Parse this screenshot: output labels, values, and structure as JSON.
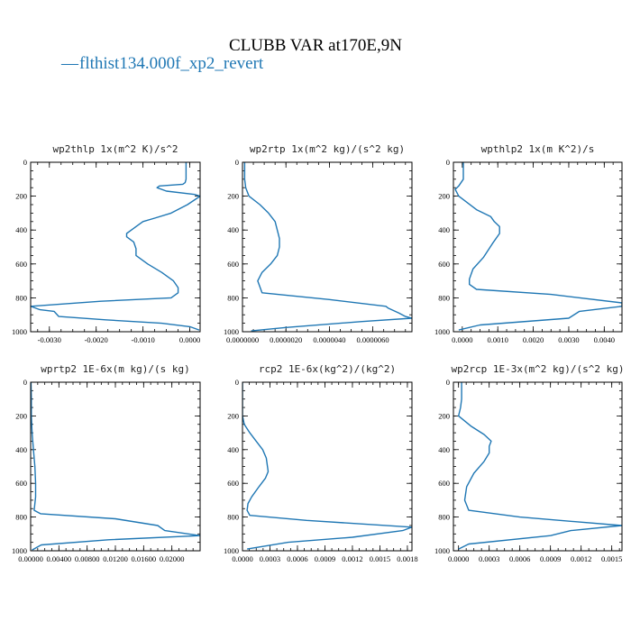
{
  "figure": {
    "title": "CLUBB VAR at170E,9N",
    "legend": [
      {
        "name": "flthist134.000f_xp2_revert",
        "color": "#1f77b4",
        "marker": "—"
      }
    ]
  },
  "chart_data": [
    {
      "type": "line",
      "title": "wp2thlp  1x(m^2 K)/s^2",
      "xlim": [
        -0.0034,
        0.00022
      ],
      "ylim": [
        1000,
        0
      ],
      "xticks": [
        -0.003,
        -0.002,
        -0.001,
        0.0
      ],
      "xtick_labels": [
        "-0.0030",
        "-0.0020",
        "-0.0010",
        "0.0000"
      ],
      "yticks": [
        0,
        200,
        400,
        600,
        800,
        1000
      ],
      "ytick_labels": [
        "0",
        "200",
        "400",
        "600",
        "800",
        "1000"
      ],
      "series": [
        {
          "x": [
            -8e-05,
            -8e-05,
            -8e-05,
            -0.0001,
            -0.00015,
            -0.00065,
            -0.0007,
            -0.0005,
            0.0001,
            0.00022,
            -5e-05,
            -0.0004,
            -0.00075,
            -0.001,
            -0.0011,
            -0.00125,
            -0.00135,
            -0.00135,
            -0.0012,
            -0.00115,
            -0.00115,
            -0.0009,
            -0.0006,
            -0.00035,
            -0.00025,
            -0.00025,
            -0.0004,
            -0.0019,
            -0.0034,
            -0.0032,
            -0.0029,
            -0.0028,
            -0.0018,
            -0.0006,
            0.0,
            0.0002
          ],
          "y": [
            0,
            50,
            100,
            120,
            130,
            140,
            150,
            170,
            190,
            200,
            250,
            300,
            330,
            350,
            370,
            400,
            420,
            440,
            470,
            510,
            550,
            600,
            650,
            700,
            740,
            770,
            800,
            820,
            850,
            870,
            880,
            910,
            930,
            950,
            970,
            990
          ]
        }
      ]
    },
    {
      "type": "line",
      "title": "wp2rtp  1x(m^2 kg)/(s^2 kg)",
      "xlim": [
        0.0,
        7.8e-06
      ],
      "ylim": [
        1000,
        0
      ],
      "xticks": [
        0.0,
        2e-06,
        4e-06,
        6e-06
      ],
      "xtick_labels": [
        "0.0000000",
        "0.0000020",
        "0.0000040",
        "0.0000060"
      ],
      "yticks": [
        0,
        200,
        400,
        600,
        800,
        1000
      ],
      "ytick_labels": [
        "0",
        "200",
        "400",
        "600",
        "800",
        "1000"
      ],
      "series": [
        {
          "x": [
            1e-07,
            1e-07,
            1e-07,
            1.5e-07,
            3e-07,
            8e-07,
            1.2e-06,
            1.5e-06,
            1.6e-06,
            1.7e-06,
            1.7e-06,
            1.6e-06,
            1.3e-06,
            9e-07,
            7e-07,
            9e-07,
            4e-06,
            6.6e-06,
            6.7e-06,
            7.2e-06,
            7.5e-06,
            7.8e-06,
            5.5e-06,
            2e-06,
            4e-07
          ],
          "y": [
            0,
            50,
            100,
            150,
            200,
            250,
            300,
            350,
            400,
            450,
            500,
            550,
            600,
            650,
            700,
            770,
            810,
            850,
            860,
            890,
            910,
            920,
            940,
            975,
            995
          ]
        }
      ]
    },
    {
      "type": "line",
      "title": "wpthlp2  1x(m K^2)/s",
      "xlim": [
        -0.00025,
        0.0045
      ],
      "ylim": [
        1000,
        0
      ],
      "xticks": [
        0.0,
        0.001,
        0.002,
        0.003,
        0.004
      ],
      "xtick_labels": [
        "0.0000",
        "0.0010",
        "0.0020",
        "0.0030",
        "0.0040"
      ],
      "yticks": [
        0,
        200,
        400,
        600,
        800,
        1000
      ],
      "ytick_labels": [
        "0",
        "200",
        "400",
        "600",
        "800",
        "1000"
      ],
      "series": [
        {
          "x": [
            3e-05,
            3e-05,
            3e-05,
            -0.0001,
            -0.0002,
            -0.0001,
            0.0004,
            0.0008,
            0.0009,
            0.00105,
            0.00105,
            0.00085,
            0.0006,
            0.0003,
            0.0002,
            0.0002,
            0.0004,
            0.0025,
            0.0045,
            0.0045,
            0.0033,
            0.003,
            0.0005,
            -0.0001
          ],
          "y": [
            0,
            50,
            100,
            140,
            160,
            200,
            280,
            320,
            350,
            380,
            420,
            480,
            560,
            630,
            690,
            720,
            750,
            780,
            830,
            850,
            880,
            920,
            960,
            990
          ]
        }
      ]
    },
    {
      "type": "line",
      "title": "wprtp2  1E-6x(m kg)/(s kg)",
      "xlim": [
        0.0,
        0.024
      ],
      "ylim": [
        1000,
        0
      ],
      "xticks": [
        0.0,
        0.004,
        0.008,
        0.012,
        0.016,
        0.02
      ],
      "xtick_labels": [
        "0.00000",
        "0.00400",
        "0.00800",
        "0.01200",
        "0.01600",
        "0.02000"
      ],
      "yticks": [
        0,
        200,
        400,
        600,
        800,
        1000
      ],
      "ytick_labels": [
        "0",
        "200",
        "400",
        "600",
        "800",
        "1000"
      ],
      "series": [
        {
          "x": [
            5e-05,
            0.0001,
            0.0001,
            0.0002,
            0.0004,
            0.0006,
            0.0007,
            0.0007,
            0.0006,
            0.0005,
            0.0014,
            0.012,
            0.018,
            0.019,
            0.024,
            0.011,
            0.0015,
            0.0002
          ],
          "y": [
            0,
            100,
            200,
            300,
            400,
            500,
            600,
            680,
            720,
            760,
            780,
            810,
            850,
            880,
            910,
            935,
            965,
            995
          ]
        }
      ]
    },
    {
      "type": "line",
      "title": "rcp2  1E-6x(kg^2)/(kg^2)",
      "xlim": [
        0.0,
        0.00185
      ],
      "ylim": [
        1000,
        0
      ],
      "xticks": [
        0.0,
        0.0003,
        0.0006,
        0.0009,
        0.0012,
        0.0015,
        0.0018
      ],
      "xtick_labels": [
        "0.0000",
        "0.0003",
        "0.0006",
        "0.0009",
        "0.0012",
        "0.0015",
        "0.0018"
      ],
      "yticks": [
        0,
        200,
        400,
        600,
        800,
        1000
      ],
      "ytick_labels": [
        "0",
        "200",
        "400",
        "600",
        "800",
        "1000"
      ],
      "series": [
        {
          "x": [
            0.0,
            0.0,
            0.0,
            0.0,
            2e-05,
            8e-05,
            0.00015,
            0.00022,
            0.00026,
            0.00028,
            0.00025,
            0.00018,
            0.0001,
            6e-05,
            5e-05,
            8e-05,
            0.0007,
            0.00185,
            0.00175,
            0.0012,
            0.0005,
            5e-05
          ],
          "y": [
            0,
            100,
            150,
            200,
            250,
            300,
            350,
            400,
            450,
            530,
            570,
            620,
            680,
            720,
            760,
            790,
            820,
            860,
            880,
            920,
            950,
            990
          ]
        }
      ]
    },
    {
      "type": "line",
      "title": "wp2rcp  1E-3x(m^2 kg)/(s^2 kg)",
      "xlim": [
        -5e-05,
        0.0016
      ],
      "ylim": [
        1000,
        0
      ],
      "xticks": [
        0.0,
        0.0003,
        0.0006,
        0.0009,
        0.0012,
        0.0015
      ],
      "xtick_labels": [
        "0.0000",
        "0.0003",
        "0.0006",
        "0.0009",
        "0.0012",
        "0.0015"
      ],
      "yticks": [
        0,
        200,
        400,
        600,
        800,
        1000
      ],
      "ytick_labels": [
        "0",
        "200",
        "400",
        "600",
        "800",
        "1000"
      ],
      "series": [
        {
          "x": [
            3e-05,
            3e-05,
            2e-05,
            0.0,
            0.00012,
            0.00025,
            0.00032,
            0.0003,
            0.0003,
            0.00025,
            0.00015,
            8e-05,
            6e-05,
            0.0001,
            0.0006,
            0.0016,
            0.0011,
            0.0009,
            0.0001,
            0.0
          ],
          "y": [
            0,
            100,
            150,
            200,
            260,
            310,
            350,
            380,
            420,
            470,
            540,
            620,
            700,
            760,
            800,
            850,
            880,
            910,
            960,
            990
          ]
        }
      ]
    }
  ]
}
